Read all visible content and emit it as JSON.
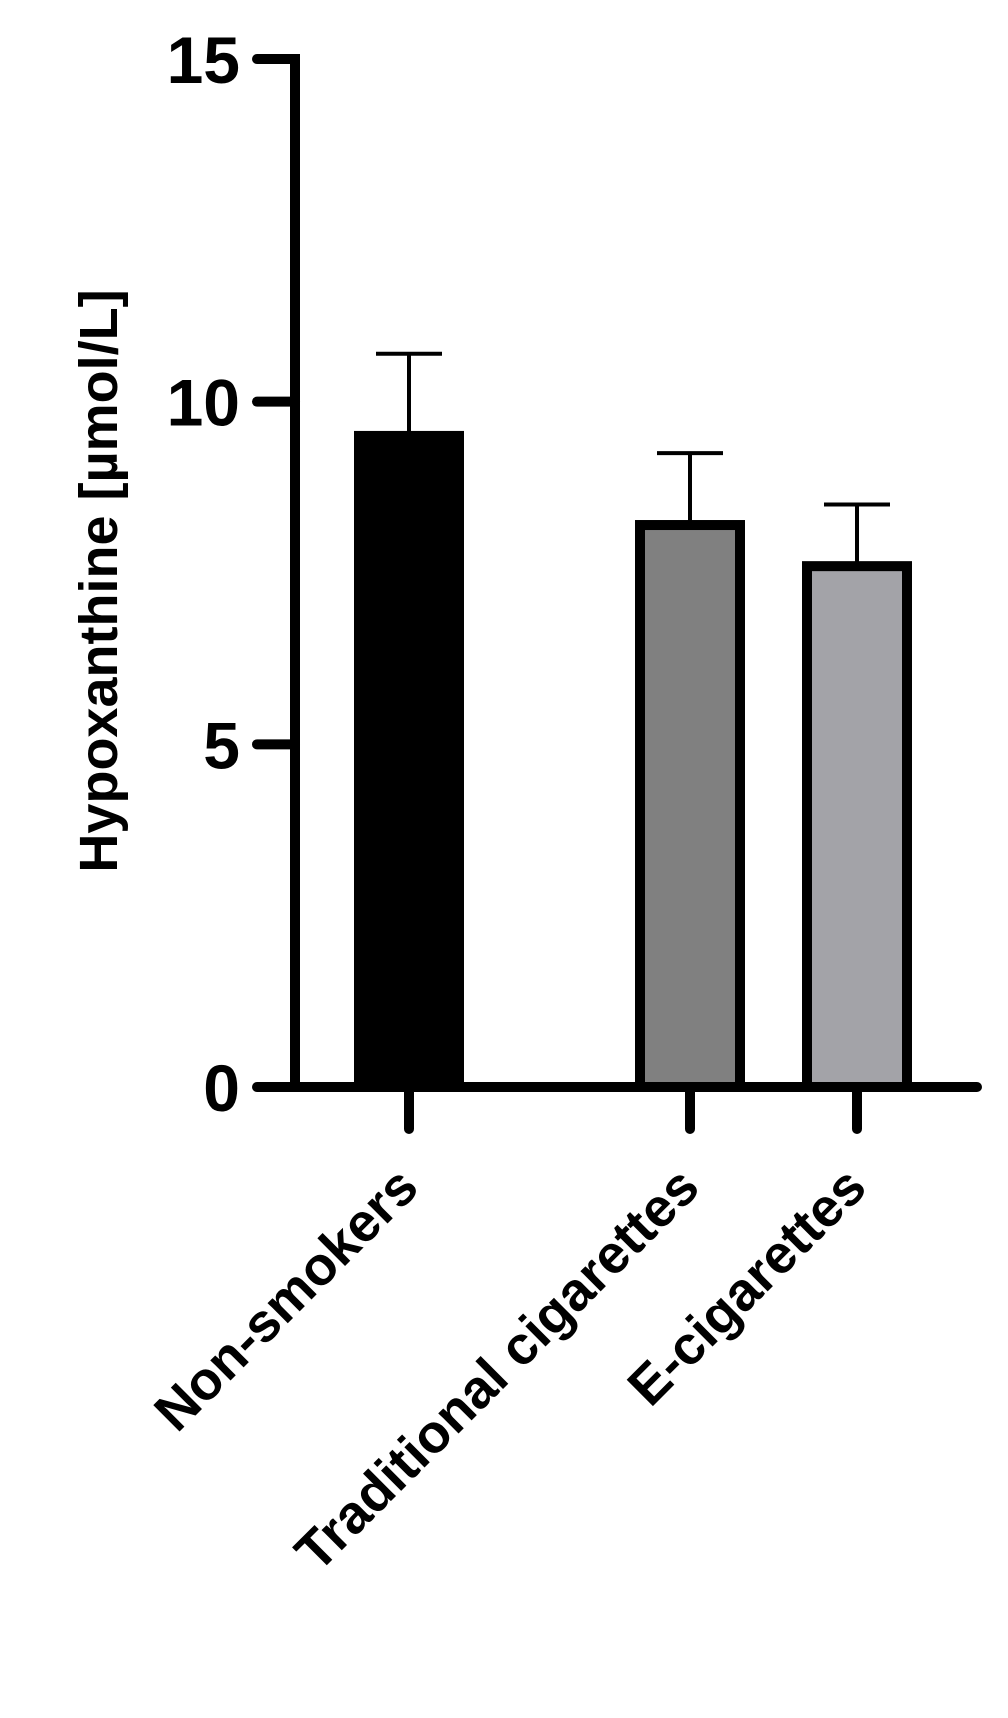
{
  "chart_data": {
    "type": "bar",
    "title": "",
    "xlabel": "",
    "ylabel": "Hypoxanthine [µmol/L]",
    "ylim": [
      0,
      15
    ],
    "yticks": [
      0,
      5,
      10,
      15
    ],
    "ytick_labels": [
      "0",
      "5",
      "10",
      "15"
    ],
    "categories": [
      "Non-smokers",
      "Traditional cigarettes",
      "E-cigarettes"
    ],
    "values": [
      9.5,
      8.2,
      7.6
    ],
    "error_upper": [
      10.7,
      9.25,
      8.5
    ],
    "colors": [
      "#000000",
      "#808080",
      "#a3a3a8"
    ],
    "grid": false,
    "legend": "none"
  }
}
